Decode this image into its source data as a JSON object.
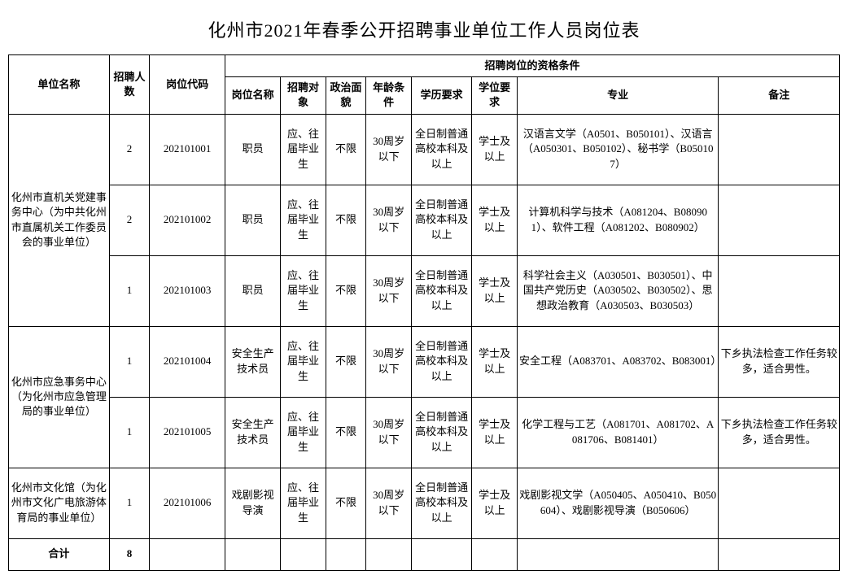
{
  "title": "化州市2021年春季公开招聘事业单位工作人员岗位表",
  "headers": {
    "unit": "单位名称",
    "count": "招聘人数",
    "code": "岗位代码",
    "qual_group": "招聘岗位的资格条件",
    "posname": "岗位名称",
    "target": "招聘对象",
    "political": "政治面貌",
    "age": "年龄条件",
    "education": "学历要求",
    "degree": "学位要求",
    "major": "专业",
    "remark": "备注"
  },
  "units": [
    {
      "name": "化州市直机关党建事务中心（为中共化州市直属机关工作委员会的事业单位）",
      "rows": [
        {
          "count": "2",
          "code": "202101001",
          "posname": "职员",
          "target": "应、往届毕业生",
          "political": "不限",
          "age": "30周岁以下",
          "education": "全日制普通高校本科及以上",
          "degree": "学士及以上",
          "major": "汉语言文学（A0501、B050101）、汉语言（A050301、B050102）、秘书学（B050107）",
          "remark": ""
        },
        {
          "count": "2",
          "code": "202101002",
          "posname": "职员",
          "target": "应、往届毕业生",
          "political": "不限",
          "age": "30周岁以下",
          "education": "全日制普通高校本科及以上",
          "degree": "学士及以上",
          "major": "计算机科学与技术（A081204、B080901）、软件工程（A081202、B080902）",
          "remark": ""
        },
        {
          "count": "1",
          "code": "202101003",
          "posname": "职员",
          "target": "应、往届毕业生",
          "political": "不限",
          "age": "30周岁以下",
          "education": "全日制普通高校本科及以上",
          "degree": "学士及以上",
          "major": "科学社会主义（A030501、B030501）、中国共产党历史（A030502、B030502）、思想政治教育（A030503、B030503）",
          "remark": ""
        }
      ]
    },
    {
      "name": "化州市应急事务中心（为化州市应急管理局的事业单位）",
      "rows": [
        {
          "count": "1",
          "code": "202101004",
          "posname": "安全生产技术员",
          "target": "应、往届毕业生",
          "political": "不限",
          "age": "30周岁以下",
          "education": "全日制普通高校本科及以上",
          "degree": "学士及以上",
          "major": "安全工程（A083701、A083702、B083001）",
          "remark": "下乡执法检查工作任务较多，适合男性。"
        },
        {
          "count": "1",
          "code": "202101005",
          "posname": "安全生产技术员",
          "target": "应、往届毕业生",
          "political": "不限",
          "age": "30周岁以下",
          "education": "全日制普通高校本科及以上",
          "degree": "学士及以上",
          "major": "化学工程与工艺（A081701、A081702、A081706、B081401）",
          "remark": "下乡执法检查工作任务较多，适合男性。"
        }
      ]
    },
    {
      "name": "化州市文化馆（为化州市文化广电旅游体育局的事业单位）",
      "rows": [
        {
          "count": "1",
          "code": "202101006",
          "posname": "戏剧影视导演",
          "target": "应、往届毕业生",
          "political": "不限",
          "age": "30周岁以下",
          "education": "全日制普通高校本科及以上",
          "degree": "学士及以上",
          "major": "戏剧影视文学（A050405、A050410、B050604）、戏剧影视导演（B050606）",
          "remark": ""
        }
      ]
    }
  ],
  "total": {
    "label": "合计",
    "value": "8"
  }
}
